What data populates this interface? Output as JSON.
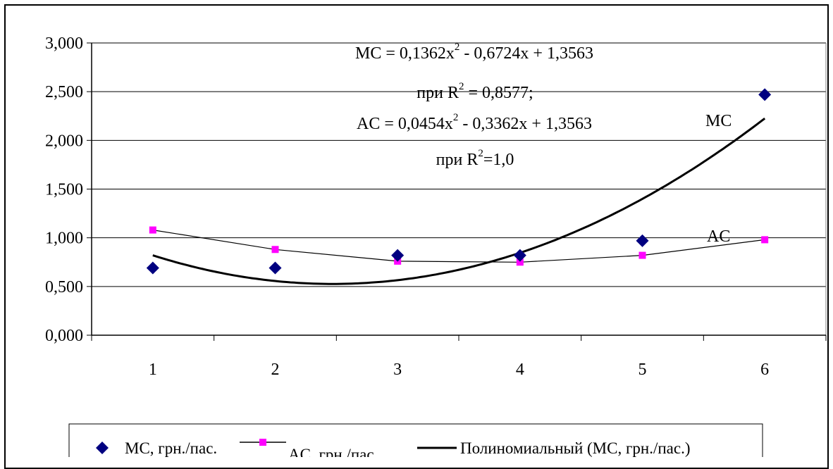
{
  "chart_data": {
    "type": "scatter",
    "title": "",
    "xlabel": "",
    "ylabel": "",
    "x": [
      1,
      2,
      3,
      4,
      5,
      6
    ],
    "x_tick_labels": [
      "1",
      "2",
      "3",
      "4",
      "5",
      "6"
    ],
    "y_tick_labels": [
      "0,000",
      "0,500",
      "1,000",
      "1,500",
      "2,000",
      "2,500",
      "3,000"
    ],
    "ylim": [
      0,
      3
    ],
    "xlim": [
      0.5,
      6.5
    ],
    "grid": {
      "horizontal": true,
      "vertical": false
    },
    "legend_position": "bottom",
    "series": [
      {
        "name": "MC, грн./пас.",
        "kind": "markers",
        "marker": "diamond",
        "color": "#000080",
        "values": [
          0.69,
          0.69,
          0.82,
          0.82,
          0.97,
          2.47
        ]
      },
      {
        "name": "AC, грн./пас.",
        "kind": "line-markers",
        "marker": "square",
        "color": "#ff00ff",
        "line_color": "#000000",
        "values": [
          1.08,
          0.88,
          0.76,
          0.75,
          0.82,
          0.98
        ]
      },
      {
        "name": "Полиномиальный (MC, грн./пас.)",
        "kind": "trendline",
        "color": "#000000",
        "coefficients": [
          0.1362,
          -0.6724,
          1.3563
        ]
      }
    ],
    "annotations": [
      {
        "id": "mc-eq",
        "text": "MC = 0,1362x² - 0,6724x + 1,3563"
      },
      {
        "id": "mc-r2",
        "text": "при R² = 0,8577;"
      },
      {
        "id": "ac-eq",
        "text": "AC = 0,0454x² - 0,3362x + 1,3563"
      },
      {
        "id": "ac-r2",
        "text": "при R²=1,0"
      },
      {
        "id": "mc-label",
        "text": "MC"
      },
      {
        "id": "ac-label",
        "text": "AC"
      }
    ]
  }
}
